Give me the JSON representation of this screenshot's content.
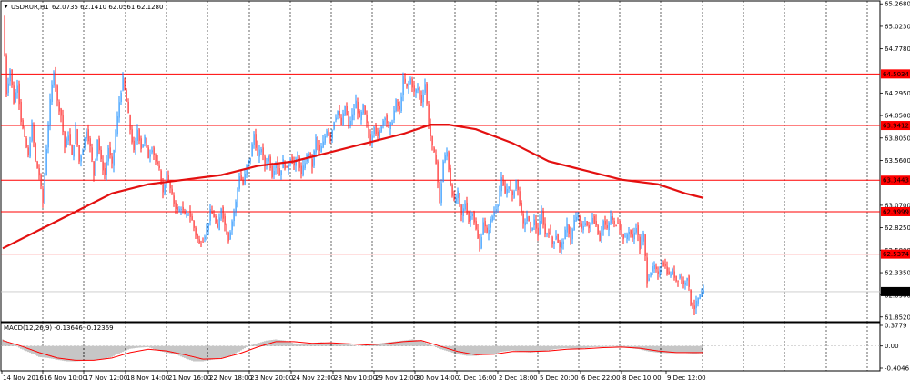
{
  "header": {
    "symbol": "USDRUR,H1",
    "ohlc": "62.0735 62.1410 62.0561 62.1280"
  },
  "macd_header": {
    "label": "MACD(12,26,9) -0.13646 -0.12369"
  },
  "colors": {
    "background": "#ffffff",
    "bull_candle": "#1e90ff",
    "bear_candle": "#ff1e1e",
    "moving_average": "#e31010",
    "level_line": "#ff0000",
    "grid": "#000000",
    "macd_hist": "#8c8c8c",
    "macd_signal": "#ff0000"
  },
  "chart_data": [
    {
      "type": "candlestick",
      "symbol": "USDRUR",
      "timeframe": "H1",
      "last_price": "62.1280",
      "y_axis": {
        "ylim": [
          61.8,
          65.3
        ],
        "ticks": [
          "65.2680",
          "65.0230",
          "64.7780",
          "64.5034",
          "64.2950",
          "64.0500",
          "63.9412",
          "63.8050",
          "63.5600",
          "63.3443",
          "63.0700",
          "62.9999",
          "62.8250",
          "62.5800",
          "62.5374",
          "62.3350",
          "62.1280",
          "62.0900",
          "61.8520"
        ]
      },
      "x_axis": {
        "ticks": [
          "14 Nov 2016",
          "16 Nov 10:00",
          "17 Nov 12:00",
          "18 Nov 14:00",
          "21 Nov 16:00",
          "22 Nov 18:00",
          "23 Nov 20:00",
          "24 Nov 22:00",
          "28 Nov 10:00",
          "29 Nov 12:00",
          "30 Nov 14:00",
          "1 Dec 16:00",
          "2 Dec 18:00",
          "5 Dec 20:00",
          "6 Dec 22:00",
          "8 Dec 10:00",
          "9 Dec 12:00"
        ]
      },
      "grid": "dashed vertical",
      "price_levels": [
        "64.5034",
        "63.9412",
        "63.3443",
        "62.9999",
        "62.5374"
      ],
      "price_path": [
        [
          0,
          65.1
        ],
        [
          4,
          64.3
        ],
        [
          8,
          64.55
        ],
        [
          12,
          64.2
        ],
        [
          16,
          64.4
        ],
        [
          20,
          64.0
        ],
        [
          24,
          63.8
        ],
        [
          28,
          63.6
        ],
        [
          32,
          63.95
        ],
        [
          36,
          63.55
        ],
        [
          40,
          63.4
        ],
        [
          44,
          63.1
        ],
        [
          48,
          63.7
        ],
        [
          52,
          64.2
        ],
        [
          56,
          64.55
        ],
        [
          60,
          64.2
        ],
        [
          64,
          64.05
        ],
        [
          68,
          63.7
        ],
        [
          72,
          63.85
        ],
        [
          76,
          63.6
        ],
        [
          80,
          63.9
        ],
        [
          84,
          63.55
        ],
        [
          88,
          63.7
        ],
        [
          92,
          63.9
        ],
        [
          96,
          63.7
        ],
        [
          100,
          63.4
        ],
        [
          104,
          63.8
        ],
        [
          108,
          63.55
        ],
        [
          112,
          63.4
        ],
        [
          116,
          63.7
        ],
        [
          120,
          63.5
        ],
        [
          124,
          63.85
        ],
        [
          128,
          64.2
        ],
        [
          132,
          64.45
        ],
        [
          136,
          64.2
        ],
        [
          140,
          63.9
        ],
        [
          144,
          63.65
        ],
        [
          148,
          63.9
        ],
        [
          152,
          63.7
        ],
        [
          156,
          63.8
        ],
        [
          160,
          63.6
        ],
        [
          164,
          63.7
        ],
        [
          168,
          63.55
        ],
        [
          172,
          63.45
        ],
        [
          176,
          63.2
        ],
        [
          180,
          63.4
        ],
        [
          184,
          63.25
        ],
        [
          188,
          63.1
        ],
        [
          192,
          63.0
        ],
        [
          196,
          63.05
        ],
        [
          200,
          62.95
        ],
        [
          204,
          63.0
        ],
        [
          208,
          62.9
        ],
        [
          212,
          62.75
        ],
        [
          216,
          62.65
        ],
        [
          220,
          62.7
        ],
        [
          224,
          62.8
        ],
        [
          228,
          63.0
        ],
        [
          232,
          62.95
        ],
        [
          236,
          62.8
        ],
        [
          240,
          63.05
        ],
        [
          244,
          62.85
        ],
        [
          248,
          62.7
        ],
        [
          252,
          62.9
        ],
        [
          256,
          63.1
        ],
        [
          260,
          63.4
        ],
        [
          264,
          63.3
        ],
        [
          268,
          63.5
        ],
        [
          272,
          63.6
        ],
        [
          276,
          63.85
        ],
        [
          280,
          63.6
        ],
        [
          284,
          63.7
        ],
        [
          288,
          63.5
        ],
        [
          292,
          63.6
        ],
        [
          296,
          63.4
        ],
        [
          300,
          63.55
        ],
        [
          304,
          63.4
        ],
        [
          308,
          63.55
        ],
        [
          312,
          63.45
        ],
        [
          316,
          63.6
        ],
        [
          320,
          63.5
        ],
        [
          324,
          63.6
        ],
        [
          328,
          63.4
        ],
        [
          332,
          63.55
        ],
        [
          336,
          63.65
        ],
        [
          340,
          63.5
        ],
        [
          344,
          63.8
        ],
        [
          348,
          63.65
        ],
        [
          352,
          63.75
        ],
        [
          356,
          63.9
        ],
        [
          360,
          63.8
        ],
        [
          364,
          64.0
        ],
        [
          368,
          64.1
        ],
        [
          372,
          63.95
        ],
        [
          376,
          64.15
        ],
        [
          380,
          63.95
        ],
        [
          384,
          64.05
        ],
        [
          388,
          64.2
        ],
        [
          392,
          64.0
        ],
        [
          396,
          64.15
        ],
        [
          400,
          63.95
        ],
        [
          404,
          63.75
        ],
        [
          408,
          63.95
        ],
        [
          412,
          63.8
        ],
        [
          416,
          63.95
        ],
        [
          420,
          64.05
        ],
        [
          424,
          63.9
        ],
        [
          428,
          64.0
        ],
        [
          432,
          64.2
        ],
        [
          436,
          64.1
        ],
        [
          440,
          64.45
        ],
        [
          444,
          64.35
        ],
        [
          448,
          64.45
        ],
        [
          452,
          64.3
        ],
        [
          456,
          64.35
        ],
        [
          460,
          64.2
        ],
        [
          464,
          64.4
        ],
        [
          468,
          63.95
        ],
        [
          472,
          63.7
        ],
        [
          476,
          63.55
        ],
        [
          480,
          63.1
        ],
        [
          484,
          63.55
        ],
        [
          488,
          63.65
        ],
        [
          492,
          63.3
        ],
        [
          496,
          63.1
        ],
        [
          500,
          63.2
        ],
        [
          504,
          62.95
        ],
        [
          508,
          63.1
        ],
        [
          512,
          62.9
        ],
        [
          516,
          63.0
        ],
        [
          520,
          62.8
        ],
        [
          524,
          62.6
        ],
        [
          528,
          62.9
        ],
        [
          532,
          62.75
        ],
        [
          536,
          62.9
        ],
        [
          540,
          63.0
        ],
        [
          544,
          63.1
        ],
        [
          548,
          63.35
        ],
        [
          552,
          63.2
        ],
        [
          556,
          63.3
        ],
        [
          560,
          63.15
        ],
        [
          564,
          63.35
        ],
        [
          568,
          63.1
        ],
        [
          572,
          62.85
        ],
        [
          576,
          62.95
        ],
        [
          580,
          62.8
        ],
        [
          584,
          62.9
        ],
        [
          588,
          62.75
        ],
        [
          592,
          63.0
        ],
        [
          596,
          62.75
        ],
        [
          600,
          62.8
        ],
        [
          604,
          62.65
        ],
        [
          608,
          62.75
        ],
        [
          612,
          62.6
        ],
        [
          616,
          62.7
        ],
        [
          620,
          62.85
        ],
        [
          624,
          62.7
        ],
        [
          628,
          62.9
        ],
        [
          632,
          62.95
        ],
        [
          636,
          62.8
        ],
        [
          640,
          62.9
        ],
        [
          644,
          62.8
        ],
        [
          648,
          62.95
        ],
        [
          652,
          62.85
        ],
        [
          656,
          62.7
        ],
        [
          660,
          62.9
        ],
        [
          664,
          62.8
        ],
        [
          668,
          62.95
        ],
        [
          672,
          62.85
        ],
        [
          676,
          62.9
        ],
        [
          680,
          62.75
        ],
        [
          684,
          62.7
        ],
        [
          688,
          62.8
        ],
        [
          692,
          62.7
        ],
        [
          696,
          62.85
        ],
        [
          700,
          62.6
        ],
        [
          704,
          62.75
        ],
        [
          708,
          62.25
        ],
        [
          712,
          62.35
        ],
        [
          716,
          62.4
        ],
        [
          720,
          62.3
        ],
        [
          724,
          62.45
        ],
        [
          728,
          62.4
        ],
        [
          732,
          62.3
        ],
        [
          736,
          62.35
        ],
        [
          740,
          62.25
        ],
        [
          744,
          62.3
        ],
        [
          748,
          62.2
        ],
        [
          752,
          62.3
        ],
        [
          756,
          62.0
        ],
        [
          760,
          61.95
        ],
        [
          764,
          62.05
        ],
        [
          768,
          62.1
        ],
        [
          772,
          62.13
        ]
      ],
      "moving_average": [
        [
          0,
          62.6
        ],
        [
          40,
          62.8
        ],
        [
          80,
          63.0
        ],
        [
          120,
          63.2
        ],
        [
          160,
          63.3
        ],
        [
          200,
          63.35
        ],
        [
          240,
          63.4
        ],
        [
          280,
          63.5
        ],
        [
          320,
          63.55
        ],
        [
          360,
          63.65
        ],
        [
          400,
          63.75
        ],
        [
          440,
          63.85
        ],
        [
          470,
          63.95
        ],
        [
          490,
          63.95
        ],
        [
          520,
          63.9
        ],
        [
          560,
          63.75
        ],
        [
          600,
          63.55
        ],
        [
          640,
          63.45
        ],
        [
          680,
          63.35
        ],
        [
          720,
          63.3
        ],
        [
          750,
          63.2
        ],
        [
          770,
          63.15
        ]
      ]
    },
    {
      "type": "bar",
      "name": "MACD(12,26,9)",
      "y_axis": {
        "ylim": [
          -0.4046,
          0.3779
        ],
        "ticks": [
          "0.3779",
          "0.00",
          "-0.4046"
        ]
      },
      "histogram": [
        [
          0,
          0.12
        ],
        [
          10,
          0.05
        ],
        [
          20,
          -0.05
        ],
        [
          30,
          -0.12
        ],
        [
          40,
          -0.2
        ],
        [
          50,
          -0.22
        ],
        [
          60,
          -0.25
        ],
        [
          70,
          -0.28
        ],
        [
          80,
          -0.28
        ],
        [
          90,
          -0.27
        ],
        [
          100,
          -0.26
        ],
        [
          110,
          -0.24
        ],
        [
          120,
          -0.2
        ],
        [
          130,
          -0.12
        ],
        [
          140,
          -0.05
        ],
        [
          150,
          -0.03
        ],
        [
          160,
          -0.02
        ],
        [
          170,
          -0.08
        ],
        [
          180,
          -0.12
        ],
        [
          190,
          -0.15
        ],
        [
          200,
          -0.22
        ],
        [
          210,
          -0.28
        ],
        [
          220,
          -0.28
        ],
        [
          230,
          -0.25
        ],
        [
          240,
          -0.22
        ],
        [
          250,
          -0.18
        ],
        [
          260,
          -0.1
        ],
        [
          270,
          0.0
        ],
        [
          280,
          0.05
        ],
        [
          290,
          0.1
        ],
        [
          300,
          0.12
        ],
        [
          310,
          0.1
        ],
        [
          320,
          0.05
        ],
        [
          330,
          0.03
        ],
        [
          340,
          0.05
        ],
        [
          350,
          0.07
        ],
        [
          360,
          0.05
        ],
        [
          370,
          0.05
        ],
        [
          380,
          0.03
        ],
        [
          390,
          0.0
        ],
        [
          400,
          0.02
        ],
        [
          410,
          0.04
        ],
        [
          420,
          0.06
        ],
        [
          430,
          0.08
        ],
        [
          440,
          0.1
        ],
        [
          450,
          0.12
        ],
        [
          460,
          0.1
        ],
        [
          470,
          0.02
        ],
        [
          480,
          -0.05
        ],
        [
          490,
          -0.1
        ],
        [
          500,
          -0.15
        ],
        [
          510,
          -0.18
        ],
        [
          520,
          -0.18
        ],
        [
          530,
          -0.16
        ],
        [
          540,
          -0.14
        ],
        [
          550,
          -0.1
        ],
        [
          560,
          -0.08
        ],
        [
          570,
          -0.1
        ],
        [
          580,
          -0.12
        ],
        [
          590,
          -0.1
        ],
        [
          600,
          -0.08
        ],
        [
          610,
          -0.05
        ],
        [
          620,
          -0.04
        ],
        [
          630,
          -0.05
        ],
        [
          640,
          -0.04
        ],
        [
          650,
          -0.02
        ],
        [
          660,
          -0.02
        ],
        [
          670,
          -0.01
        ],
        [
          680,
          -0.02
        ],
        [
          690,
          -0.04
        ],
        [
          700,
          -0.06
        ],
        [
          710,
          -0.1
        ],
        [
          720,
          -0.12
        ],
        [
          730,
          -0.13
        ],
        [
          740,
          -0.13
        ],
        [
          750,
          -0.13
        ],
        [
          760,
          -0.14
        ],
        [
          770,
          -0.13
        ]
      ],
      "signal": [
        [
          0,
          0.1
        ],
        [
          20,
          0.0
        ],
        [
          40,
          -0.12
        ],
        [
          60,
          -0.22
        ],
        [
          80,
          -0.26
        ],
        [
          100,
          -0.26
        ],
        [
          120,
          -0.22
        ],
        [
          140,
          -0.12
        ],
        [
          160,
          -0.06
        ],
        [
          180,
          -0.09
        ],
        [
          200,
          -0.16
        ],
        [
          220,
          -0.24
        ],
        [
          240,
          -0.23
        ],
        [
          260,
          -0.14
        ],
        [
          280,
          -0.02
        ],
        [
          300,
          0.08
        ],
        [
          320,
          0.08
        ],
        [
          340,
          0.05
        ],
        [
          360,
          0.06
        ],
        [
          380,
          0.04
        ],
        [
          400,
          0.02
        ],
        [
          420,
          0.04
        ],
        [
          440,
          0.08
        ],
        [
          460,
          0.1
        ],
        [
          480,
          0.0
        ],
        [
          500,
          -0.1
        ],
        [
          520,
          -0.16
        ],
        [
          540,
          -0.15
        ],
        [
          560,
          -0.1
        ],
        [
          580,
          -0.1
        ],
        [
          600,
          -0.09
        ],
        [
          620,
          -0.06
        ],
        [
          640,
          -0.05
        ],
        [
          660,
          -0.03
        ],
        [
          680,
          -0.02
        ],
        [
          700,
          -0.04
        ],
        [
          720,
          -0.09
        ],
        [
          740,
          -0.12
        ],
        [
          770,
          -0.12
        ]
      ]
    }
  ]
}
